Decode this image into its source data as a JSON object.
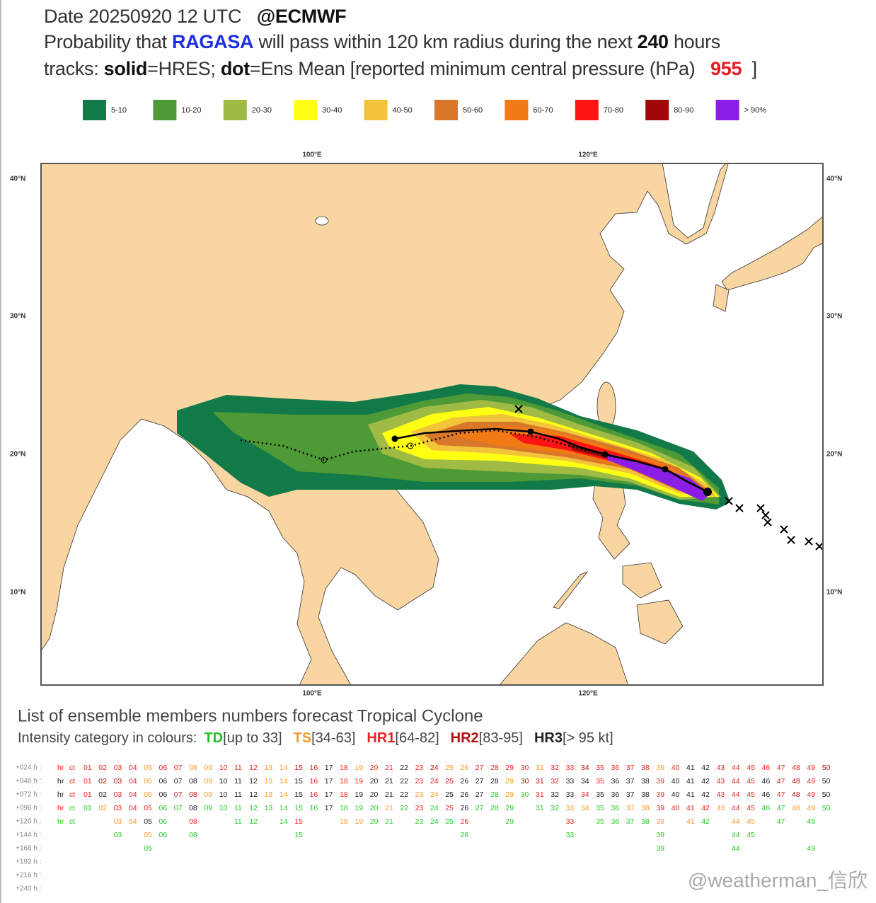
{
  "header": {
    "date": "Date 20250920 12 UTC",
    "source": "@ECMWF",
    "line2": {
      "a": "Probability that",
      "storm": "RAGASA",
      "b": "will pass within 120 km radius during the next",
      "hours": "240",
      "c": "hours"
    },
    "line3": {
      "a": "tracks:",
      "solid": "solid",
      "b": "=HRES;",
      "dot": "dot",
      "c": "=Ens Mean [reported minimum central pressure (hPa)",
      "pressure": "955",
      "d": "]"
    }
  },
  "legend": {
    "labels": [
      "5-10",
      "10-20",
      "20-30",
      "30-40",
      "40-50",
      "50-60",
      "60-70",
      "70-80",
      "80-90",
      "> 90%"
    ],
    "colors": [
      "#127a48",
      "#4e9a36",
      "#9fbb44",
      "#ffff14",
      "#f2c43a",
      "#d8762a",
      "#f27a14",
      "#ff1414",
      "#a00808",
      "#8a1ee6"
    ]
  },
  "map": {
    "lat_labels": [
      "40°N",
      "30°N",
      "20°N",
      "10°N"
    ],
    "lon_labels": [
      "100°E",
      "120°E"
    ]
  },
  "ensemble": {
    "title": "List of ensemble members numbers forecast Tropical Cyclone",
    "intensity_label": "Intensity category in colours:",
    "categories": [
      {
        "name": "TD",
        "range": "[up to 33]",
        "color": "#22c322"
      },
      {
        "name": "TS",
        "range": "[34-63]",
        "color": "#f59a2a"
      },
      {
        "name": "HR1",
        "range": "[64-82]",
        "color": "#e62222"
      },
      {
        "name": "HR2",
        "range": "[83-95]",
        "color": "#b01010"
      },
      {
        "name": "HR3",
        "range": "[> 95 kt]",
        "color": "#222222"
      }
    ],
    "rows": [
      {
        "label": "+024 h :",
        "members": [
          "hr",
          "ct",
          "01",
          "02",
          "03",
          "04",
          "05",
          "06",
          "07",
          "08",
          "09",
          "10",
          "11",
          "12",
          "13",
          "14",
          "15",
          "16",
          "17",
          "18",
          "19",
          "20",
          "21",
          "22",
          "23",
          "24",
          "25",
          "26",
          "27",
          "28",
          "29",
          "30",
          "31",
          "32",
          "33",
          "34",
          "35",
          "36",
          "37",
          "38",
          "39",
          "40",
          "41",
          "42",
          "43",
          "44",
          "45",
          "46",
          "47",
          "48",
          "49",
          "50"
        ],
        "colors": [
          "#e22",
          "#e22",
          "#e22",
          "#e22",
          "#e22",
          "#e22",
          "#f92",
          "#e22",
          "#e22",
          "#f92",
          "#f92",
          "#e22",
          "#e22",
          "#e22",
          "#f92",
          "#f92",
          "#b11",
          "#e22",
          "#222",
          "#e22",
          "#f92",
          "#e22",
          "#e22",
          "#222",
          "#e22",
          "#b11",
          "#f92",
          "#f92",
          "#e22",
          "#e22",
          "#e22",
          "#e22",
          "#f92",
          "#e22",
          "#e22",
          "#b11",
          "#e22",
          "#e22",
          "#e22",
          "#e22",
          "#f92",
          "#e22",
          "#222",
          "#222",
          "#e22",
          "#e22",
          "#e22",
          "#e22",
          "#e22",
          "#e22",
          "#e22",
          "#b11"
        ]
      },
      {
        "label": "+048 h :",
        "members": [
          "hr",
          "ct",
          "01",
          "02",
          "03",
          "04",
          "05",
          "06",
          "07",
          "08",
          "09",
          "10",
          "11",
          "12",
          "13",
          "14",
          "15",
          "16",
          "17",
          "18",
          "19",
          "20",
          "21",
          "22",
          "23",
          "24",
          "25",
          "26",
          "27",
          "28",
          "29",
          "30",
          "31",
          "32",
          "33",
          "34",
          "35",
          "36",
          "37",
          "38",
          "39",
          "40",
          "41",
          "42",
          "43",
          "44",
          "45",
          "46",
          "47",
          "48",
          "49",
          "50"
        ],
        "colors": [
          "#222",
          "#e22",
          "#e22",
          "#b11",
          "#b11",
          "#e22",
          "#f92",
          "#222",
          "#222",
          "#222",
          "#f92",
          "#222",
          "#222",
          "#222",
          "#f92",
          "#f92",
          "#222",
          "#e22",
          "#222",
          "#e22",
          "#e22",
          "#222",
          "#222",
          "#222",
          "#e22",
          "#e22",
          "#b11",
          "#222",
          "#222",
          "#222",
          "#f92",
          "#b11",
          "#b11",
          "#e22",
          "#222",
          "#222",
          "#e22",
          "#222",
          "#222",
          "#222",
          "#e22",
          "#222",
          "#222",
          "#222",
          "#e22",
          "#e22",
          "#e22",
          "#222",
          "#e22",
          "#b11",
          "#e22",
          "#222"
        ]
      },
      {
        "label": "+072 h :",
        "members": [
          "hr",
          "ct",
          "01",
          "02",
          "03",
          "04",
          "05",
          "06",
          "07",
          "08",
          "09",
          "10",
          "11",
          "12",
          "13",
          "14",
          "15",
          "16",
          "17",
          "18",
          "19",
          "20",
          "21",
          "22",
          "23",
          "24",
          "25",
          "26",
          "27",
          "28",
          "29",
          "30",
          "31",
          "32",
          "33",
          "34",
          "35",
          "36",
          "37",
          "38",
          "39",
          "40",
          "41",
          "42",
          "43",
          "44",
          "45",
          "46",
          "47",
          "48",
          "49",
          "50"
        ],
        "colors": [
          "#222",
          "#e22",
          "#e22",
          "#222",
          "#e22",
          "#e22",
          "#f92",
          "#222",
          "#e22",
          "#b11",
          "#f92",
          "#222",
          "#222",
          "#222",
          "#f92",
          "#f92",
          "#222",
          "#e22",
          "#222",
          "#e22",
          "#222",
          "#222",
          "#222",
          "#222",
          "#f92",
          "#f92",
          "#222",
          "#222",
          "#222",
          "#2c2",
          "#f92",
          "#2c2",
          "#e22",
          "#222",
          "#222",
          "#e22",
          "#222",
          "#222",
          "#222",
          "#222",
          "#e22",
          "#222",
          "#222",
          "#222",
          "#e22",
          "#e22",
          "#e22",
          "#222",
          "#e22",
          "#b11",
          "#e22",
          "#222"
        ]
      },
      {
        "label": "+096 h :",
        "members": [
          "hr",
          "ct",
          "01",
          "02",
          "03",
          "04",
          "05",
          "06",
          "07",
          "08",
          "09",
          "10",
          "11",
          "12",
          "13",
          "14",
          "15",
          "16",
          "17",
          "18",
          "19",
          "20",
          "21",
          "22",
          "23",
          "24",
          "25",
          "26",
          "27",
          "28",
          "29",
          null,
          "31",
          "32",
          "33",
          "34",
          "35",
          "36",
          "37",
          "38",
          "39",
          "40",
          "41",
          "42",
          "43",
          "44",
          "45",
          "46",
          "47",
          "48",
          "49",
          "50"
        ],
        "colors": [
          "#e22",
          "#2c2",
          "#2c2",
          "#f92",
          "#e22",
          "#e22",
          "#e22",
          "#2c2",
          "#2c2",
          "#222",
          "#2c2",
          "#2c2",
          "#2c2",
          "#2c2",
          "#2c2",
          "#2c2",
          "#2c2",
          "#2c2",
          "#222",
          "#2c2",
          "#2c2",
          "#2c2",
          "#f92",
          "#2c2",
          "#e22",
          "#2c2",
          "#e22",
          "#222",
          "#2c2",
          "#2c2",
          "#2c2",
          null,
          "#2c2",
          "#2c2",
          "#f92",
          "#f92",
          "#2c2",
          "#2c2",
          "#f92",
          "#f92",
          "#e22",
          "#e22",
          "#e22",
          "#e22",
          "#f92",
          "#e22",
          "#e22",
          "#2c2",
          "#2c2",
          "#f92",
          "#f92",
          "#2c2"
        ]
      },
      {
        "label": "+120 h :",
        "members": [
          "hr",
          "ct",
          null,
          null,
          "03",
          "04",
          "05",
          "06",
          null,
          "08",
          null,
          null,
          "11",
          "12",
          null,
          "14",
          "15",
          null,
          null,
          "18",
          "19",
          "20",
          "21",
          null,
          "23",
          "24",
          "25",
          "26",
          null,
          null,
          "29",
          null,
          null,
          null,
          "33",
          null,
          "35",
          "36",
          "37",
          "38",
          "39",
          null,
          "41",
          "42",
          null,
          "44",
          "45",
          null,
          "47",
          null,
          "49",
          null
        ],
        "colors": [
          "#2c2",
          "#2c2",
          null,
          null,
          "#f92",
          "#f92",
          "#222",
          "#2c2",
          null,
          "#e22",
          null,
          null,
          "#2c2",
          "#2c2",
          null,
          "#2c2",
          "#e22",
          null,
          null,
          "#f92",
          "#f92",
          "#2c2",
          "#2c2",
          null,
          "#2c2",
          "#2c2",
          "#2c2",
          "#e22",
          null,
          null,
          "#2c2",
          null,
          null,
          null,
          "#e22",
          null,
          "#2c2",
          "#2c2",
          "#2c2",
          "#2c2",
          "#f92",
          null,
          "#f92",
          "#2c2",
          null,
          "#f92",
          "#f92",
          null,
          "#2c2",
          null,
          "#2c2",
          null
        ]
      },
      {
        "label": "+144 h :",
        "members": [
          null,
          null,
          null,
          null,
          "03",
          null,
          "05",
          "06",
          null,
          "08",
          null,
          null,
          null,
          null,
          null,
          null,
          "15",
          null,
          null,
          null,
          null,
          null,
          null,
          null,
          null,
          null,
          null,
          "26",
          null,
          null,
          null,
          null,
          null,
          null,
          "33",
          null,
          null,
          null,
          null,
          null,
          "39",
          null,
          null,
          null,
          null,
          "44",
          "45",
          null,
          null,
          null,
          null,
          null
        ],
        "colors": [
          null,
          null,
          null,
          null,
          "#2c2",
          null,
          "#f92",
          "#2c2",
          null,
          "#2c2",
          null,
          null,
          null,
          null,
          null,
          null,
          "#2c2",
          null,
          null,
          null,
          null,
          null,
          null,
          null,
          null,
          null,
          null,
          "#2c2",
          null,
          null,
          null,
          null,
          null,
          null,
          "#2c2",
          null,
          null,
          null,
          null,
          null,
          "#2c2",
          null,
          null,
          null,
          null,
          "#2c2",
          "#2c2",
          null,
          null,
          null,
          null,
          null
        ]
      },
      {
        "label": "+168 h :",
        "members": [
          null,
          null,
          null,
          null,
          null,
          null,
          "05",
          null,
          null,
          null,
          null,
          null,
          null,
          null,
          null,
          null,
          null,
          null,
          null,
          null,
          null,
          null,
          null,
          null,
          null,
          null,
          null,
          null,
          null,
          null,
          null,
          null,
          null,
          null,
          null,
          null,
          null,
          null,
          null,
          null,
          "39",
          null,
          null,
          null,
          null,
          "44",
          null,
          null,
          null,
          null,
          "49",
          null
        ],
        "colors": [
          null,
          null,
          null,
          null,
          null,
          null,
          "#2c2",
          null,
          null,
          null,
          null,
          null,
          null,
          null,
          null,
          null,
          null,
          null,
          null,
          null,
          null,
          null,
          null,
          null,
          null,
          null,
          null,
          null,
          null,
          null,
          null,
          null,
          null,
          null,
          null,
          null,
          null,
          null,
          null,
          null,
          "#2c2",
          null,
          null,
          null,
          null,
          "#2c2",
          null,
          null,
          null,
          null,
          "#2c2",
          null
        ]
      },
      {
        "label": "+192 h :"
      },
      {
        "label": "+216 h :"
      },
      {
        "label": "+240 h :"
      }
    ]
  },
  "watermark": "@weatherman_信欣"
}
